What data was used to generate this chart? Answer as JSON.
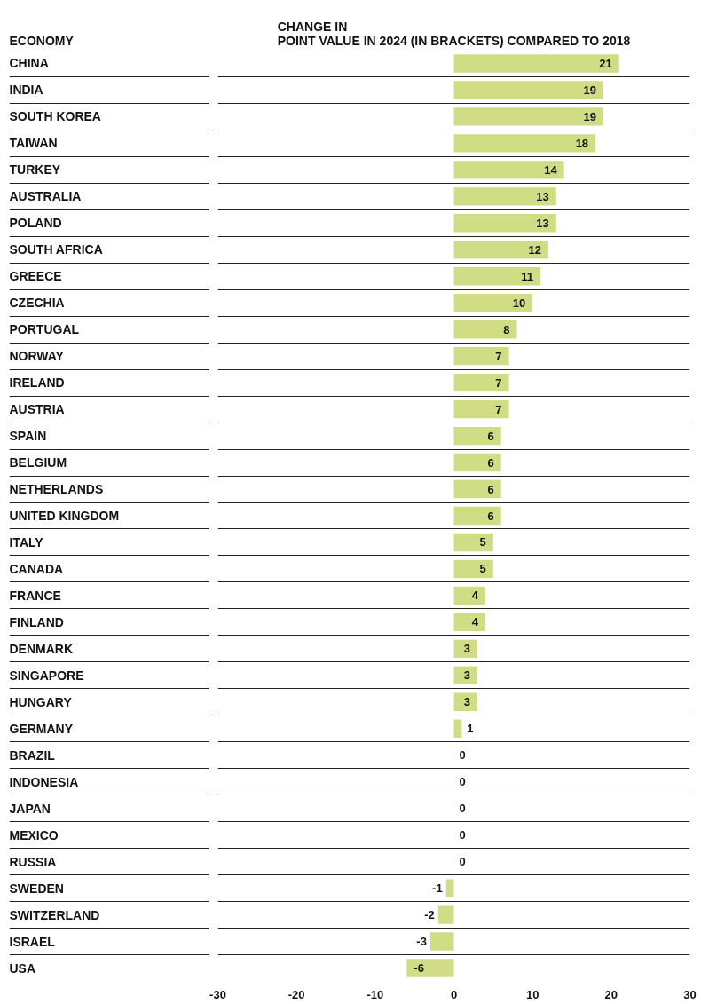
{
  "chart_data": {
    "type": "bar",
    "orientation": "horizontal",
    "ylabel": "ECONOMY",
    "xlabel": "CHANGE IN\nPOINT VALUE IN 2024 (IN BRACKETS) COMPARED TO 2018",
    "categories": [
      "CHINA",
      "INDIA",
      "SOUTH KOREA",
      "TAIWAN",
      "TURKEY",
      "AUSTRALIA",
      "POLAND",
      "SOUTH AFRICA",
      "GREECE",
      "CZECHIA",
      "PORTUGAL",
      "NORWAY",
      "IRELAND",
      "AUSTRIA",
      "SPAIN",
      "BELGIUM",
      "NETHERLANDS",
      "UNITED KINGDOM",
      "ITALY",
      "CANADA",
      "FRANCE",
      "FINLAND",
      "DENMARK",
      "SINGAPORE",
      "HUNGARY",
      "GERMANY",
      "BRAZIL",
      "INDONESIA",
      "JAPAN",
      "MEXICO",
      "RUSSIA",
      "SWEDEN",
      "SWITZERLAND",
      "ISRAEL",
      "USA"
    ],
    "values": [
      21,
      19,
      19,
      18,
      14,
      13,
      13,
      12,
      11,
      10,
      8,
      7,
      7,
      7,
      6,
      6,
      6,
      6,
      5,
      5,
      4,
      4,
      3,
      3,
      3,
      1,
      0,
      0,
      0,
      0,
      0,
      -1,
      -2,
      -3,
      -6
    ],
    "color": "#d0dd85",
    "xlim": [
      -30,
      30
    ],
    "xticks": [
      -30,
      -20,
      -10,
      0,
      10,
      20,
      30
    ],
    "grid": "y",
    "data_labels": true
  }
}
